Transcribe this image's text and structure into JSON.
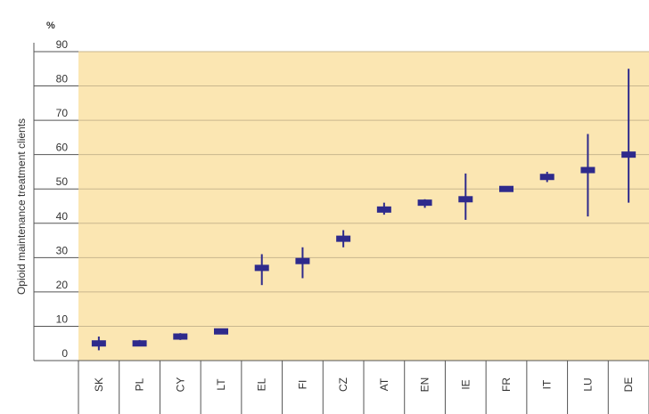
{
  "chart_data": {
    "type": "range",
    "unit_label": "%",
    "ylabel": "Opioid maintenance treatment clients",
    "xlabel": "",
    "ylim": [
      0,
      90
    ],
    "yticks": [
      0,
      10,
      20,
      30,
      40,
      50,
      60,
      70,
      80,
      90
    ],
    "grid": true,
    "colors": {
      "plot_bg": "#fbe6b2",
      "grid": "#c9b78e",
      "marker": "#2e2a8c",
      "axis": "#555555"
    },
    "categories": [
      "SK",
      "PL",
      "CY",
      "LT",
      "EL",
      "FI",
      "CZ",
      "AT",
      "EN",
      "IE",
      "FR",
      "IT",
      "LU",
      "DE"
    ],
    "series": [
      {
        "values": [
          5,
          5,
          7,
          8.5,
          27,
          29,
          35.5,
          44,
          46,
          47,
          50,
          53.5,
          55.5,
          60
        ],
        "low": [
          3,
          4.5,
          6,
          8,
          22,
          24,
          33,
          42.5,
          44.5,
          41,
          49.5,
          52,
          42,
          46
        ],
        "high": [
          7,
          6,
          8,
          9,
          31,
          33,
          38,
          46,
          47,
          54.5,
          50.5,
          55,
          66,
          85
        ]
      }
    ]
  }
}
